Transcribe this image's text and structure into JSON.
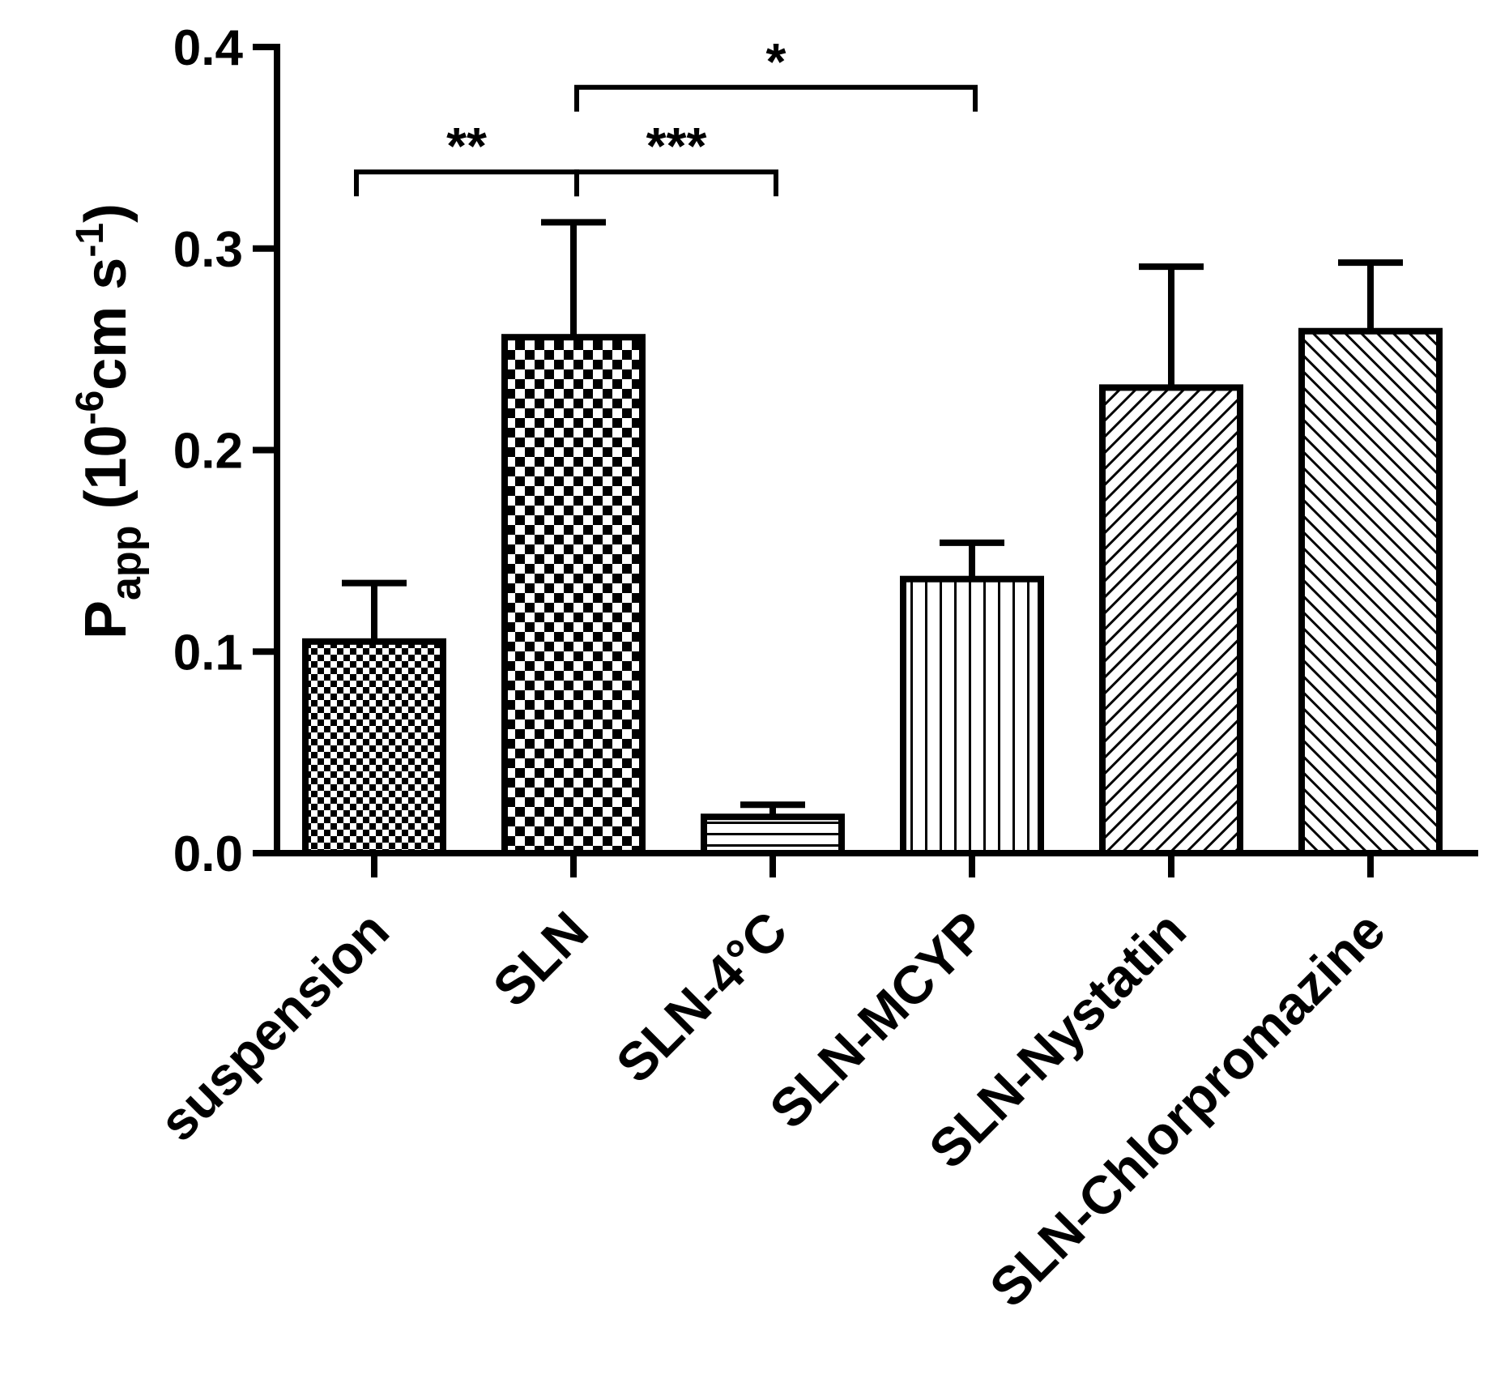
{
  "chart_data": {
    "type": "bar",
    "title": "",
    "xlabel": "",
    "ylabel": {
      "main": "P",
      "sub": "app",
      "open": " (10",
      "sup1": "-6",
      "mid": "cm s",
      "sup2": "-1",
      "close": ")"
    },
    "ylim": [
      0,
      0.4
    ],
    "yticks": [
      {
        "value": 0.0,
        "label": "0.0"
      },
      {
        "value": 0.1,
        "label": "0.1"
      },
      {
        "value": 0.2,
        "label": "0.2"
      },
      {
        "value": 0.3,
        "label": "0.3"
      },
      {
        "value": 0.4,
        "label": "0.4"
      }
    ],
    "grid": false,
    "categories": [
      "suspension",
      "SLN",
      "SLN-4°C",
      "SLN-MCYP",
      "SLN-Nystatin",
      "SLN-Chlorpromazine"
    ],
    "values": [
      0.105,
      0.256,
      0.018,
      0.136,
      0.231,
      0.259
    ],
    "errors": [
      0.029,
      0.057,
      0.006,
      0.018,
      0.06,
      0.034
    ],
    "patterns": [
      "checker-small",
      "checker-large",
      "horizontal-lines",
      "vertical-lines",
      "diagonal-up",
      "diagonal-down"
    ],
    "significance": [
      {
        "from": 0,
        "to": 1,
        "level": 0.338,
        "label": "**"
      },
      {
        "from": 1,
        "to": 2,
        "level": 0.338,
        "label": "***"
      },
      {
        "from": 1,
        "to": 3,
        "level": 0.38,
        "label": "*"
      }
    ]
  },
  "colors": {
    "ink": "#000000",
    "background": "#ffffff"
  }
}
